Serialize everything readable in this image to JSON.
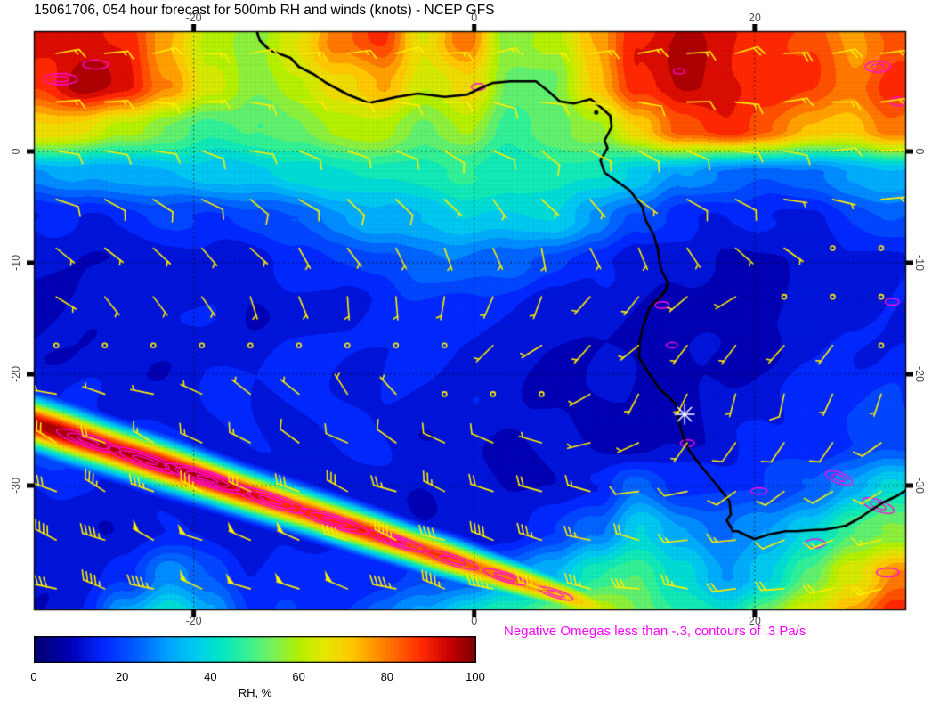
{
  "title": "15061706, 054 hour forecast for 500mb RH and winds (knots) - NCEP GFS",
  "annotation": "Negative Omegas less than -.3, contours of .3 Pa/s",
  "colorbar": {
    "label": "RH, %",
    "ticks": [
      0,
      20,
      40,
      60,
      80,
      100
    ],
    "min": 0,
    "max": 100
  },
  "axes": {
    "lon_range": [
      -31.4,
      30.8
    ],
    "lat_range": [
      10.8,
      -41.2
    ],
    "lon_ticks": [
      {
        "value": -20,
        "label": "-20"
      },
      {
        "value": 0,
        "label": "0"
      },
      {
        "value": 20,
        "label": "20"
      }
    ],
    "lat_ticks": [
      {
        "value": 0,
        "label": "0"
      },
      {
        "value": -10,
        "label": "-10"
      },
      {
        "value": -20,
        "label": "-20"
      },
      {
        "value": -30,
        "label": "-30"
      }
    ]
  },
  "colors": {
    "barb": "#ffee00",
    "omega_contour": "#ff0be0",
    "annotation": "#ff00ff",
    "coastline": "#000000",
    "marker": "#ffffff",
    "axis_label": "#4d4d4d"
  },
  "marker": {
    "symbol": "asterisk",
    "lon": 15.0,
    "lat": -23.6
  },
  "chart_data": {
    "type": "heatmap",
    "field": "500mb relative humidity (%) with wind barbs (knots) and negative omega contours",
    "model": "NCEP GFS",
    "init_time": "15061706",
    "forecast_hour": 54,
    "level": "500mb",
    "colormap_stops": [
      [
        0,
        "#00006e"
      ],
      [
        8,
        "#0000b4"
      ],
      [
        16,
        "#0028ff"
      ],
      [
        24,
        "#0064ff"
      ],
      [
        30,
        "#00a0ff"
      ],
      [
        36,
        "#00c8f0"
      ],
      [
        42,
        "#00e6c8"
      ],
      [
        48,
        "#32f096"
      ],
      [
        54,
        "#78f05a"
      ],
      [
        60,
        "#b4f000"
      ],
      [
        66,
        "#e6e600"
      ],
      [
        72,
        "#ffc800"
      ],
      [
        80,
        "#ff7800"
      ],
      [
        88,
        "#ff2800"
      ],
      [
        94,
        "#c80000"
      ],
      [
        100,
        "#780000"
      ]
    ],
    "rh": {
      "units": "%",
      "lon_start": -31,
      "lon_step": 3.05,
      "lat_start": 10,
      "lat_step": -4,
      "values": [
        [
          90,
          92,
          88,
          75,
          60,
          58,
          65,
          80,
          88,
          65,
          80,
          55,
          60,
          75,
          90,
          95,
          90,
          88,
          85,
          75,
          85
        ],
        [
          88,
          95,
          92,
          80,
          62,
          55,
          60,
          70,
          75,
          62,
          68,
          52,
          55,
          70,
          88,
          96,
          92,
          90,
          85,
          80,
          88
        ],
        [
          70,
          68,
          60,
          52,
          48,
          50,
          55,
          58,
          60,
          55,
          58,
          48,
          50,
          58,
          70,
          85,
          88,
          82,
          75,
          70,
          80
        ],
        [
          28,
          30,
          32,
          33,
          35,
          38,
          40,
          42,
          42,
          44,
          45,
          45,
          44,
          42,
          38,
          30,
          25,
          22,
          25,
          30,
          35
        ],
        [
          14,
          15,
          16,
          17,
          18,
          20,
          24,
          28,
          32,
          36,
          38,
          38,
          36,
          30,
          22,
          16,
          13,
          13,
          15,
          18,
          22
        ],
        [
          9,
          10,
          10,
          11,
          12,
          13,
          15,
          18,
          20,
          23,
          25,
          24,
          20,
          15,
          12,
          10,
          9,
          9,
          11,
          13,
          15
        ],
        [
          8,
          9,
          12,
          14,
          12,
          10,
          11,
          13,
          15,
          16,
          16,
          15,
          13,
          11,
          10,
          8,
          8,
          8,
          10,
          12,
          14
        ],
        [
          9,
          10,
          11,
          12,
          13,
          14,
          14,
          15,
          15,
          14,
          13,
          12,
          11,
          10,
          9,
          8,
          9,
          10,
          12,
          14,
          16
        ],
        [
          14,
          13,
          12,
          12,
          13,
          14,
          15,
          15,
          14,
          13,
          12,
          11,
          10,
          9,
          9,
          10,
          11,
          13,
          15,
          17,
          18
        ],
        [
          20,
          18,
          15,
          13,
          13,
          14,
          14,
          14,
          13,
          12,
          11,
          10,
          10,
          9,
          9,
          10,
          12,
          14,
          16,
          18,
          20
        ],
        [
          15,
          14,
          13,
          12,
          12,
          13,
          13,
          13,
          12,
          11,
          11,
          10,
          10,
          14,
          25,
          18,
          16,
          18,
          22,
          30,
          40
        ],
        [
          12,
          12,
          12,
          12,
          13,
          13,
          14,
          14,
          13,
          12,
          12,
          13,
          16,
          25,
          40,
          30,
          25,
          28,
          40,
          50,
          55
        ],
        [
          10,
          11,
          16,
          30,
          22,
          15,
          14,
          15,
          16,
          18,
          22,
          28,
          35,
          45,
          50,
          38,
          30,
          38,
          50,
          65,
          80
        ],
        [
          10,
          12,
          35,
          45,
          30,
          18,
          18,
          20,
          25,
          32,
          42,
          50,
          58,
          62,
          55,
          48,
          45,
          55,
          65,
          78,
          90
        ]
      ]
    },
    "front_band": {
      "description": "NW-SE oriented moist frontal band over the South Atlantic",
      "lat_start": -24.4,
      "lon_start": -31.4,
      "slope_per_deg": -0.41,
      "sigma_start": 1.6,
      "sigma_end": 0.9,
      "peak_profile": [
        [
          -31.4,
          98
        ],
        [
          -22,
          96
        ],
        [
          -12,
          90
        ],
        [
          -4,
          86
        ],
        [
          2,
          82
        ],
        [
          7,
          74
        ],
        [
          10,
          55
        ],
        [
          12.5,
          0
        ]
      ]
    },
    "wind": {
      "units": "knots",
      "lons": [
        -31,
        -25,
        -19,
        -13,
        -7,
        -1,
        5,
        11,
        17,
        23,
        30
      ],
      "lats": [
        10,
        2,
        -6,
        -14,
        -22,
        -28,
        -34,
        -42
      ],
      "uv": [
        [
          [
            -15,
            -3
          ],
          [
            -15,
            -3
          ],
          [
            -16,
            -2
          ],
          [
            -18,
            -2
          ],
          [
            -15,
            -4
          ],
          [
            -14,
            -3
          ],
          [
            -15,
            -2
          ],
          [
            -16,
            -3
          ],
          [
            -18,
            -4
          ],
          [
            -20,
            -3
          ],
          [
            -18,
            -2
          ]
        ],
        [
          [
            -12,
            0
          ],
          [
            -12,
            1
          ],
          [
            -12,
            2
          ],
          [
            -10,
            2
          ],
          [
            -10,
            3
          ],
          [
            -8,
            3
          ],
          [
            -8,
            4
          ],
          [
            -8,
            4
          ],
          [
            -10,
            2
          ],
          [
            -12,
            0
          ],
          [
            -12,
            -2
          ]
        ],
        [
          [
            -7,
            4
          ],
          [
            -6,
            5
          ],
          [
            -6,
            5
          ],
          [
            -5,
            5
          ],
          [
            -5,
            6
          ],
          [
            -4,
            6
          ],
          [
            -4,
            6
          ],
          [
            -5,
            5
          ],
          [
            -6,
            4
          ],
          [
            -6,
            2
          ],
          [
            -5,
            0
          ]
        ],
        [
          [
            -4,
            3
          ],
          [
            -3,
            4
          ],
          [
            -2,
            4
          ],
          [
            -1,
            5
          ],
          [
            0,
            5
          ],
          [
            2,
            5
          ],
          [
            3,
            4
          ],
          [
            4,
            3
          ],
          [
            4,
            2
          ],
          [
            3,
            0
          ],
          [
            2,
            -2
          ]
        ],
        [
          [
            6,
            -2
          ],
          [
            5,
            -1
          ],
          [
            4,
            -2
          ],
          [
            3,
            -3
          ],
          [
            2,
            -3
          ],
          [
            2,
            -2
          ],
          [
            3,
            0
          ],
          [
            3,
            4
          ],
          [
            2,
            7
          ],
          [
            2,
            8
          ],
          [
            3,
            6
          ]
        ],
        [
          [
            20,
            -10
          ],
          [
            22,
            -11
          ],
          [
            18,
            -9
          ],
          [
            14,
            -8
          ],
          [
            12,
            -6
          ],
          [
            10,
            -5
          ],
          [
            8,
            -2
          ],
          [
            6,
            2
          ],
          [
            5,
            6
          ],
          [
            6,
            7
          ],
          [
            8,
            5
          ]
        ],
        [
          [
            35,
            -16
          ],
          [
            42,
            -20
          ],
          [
            48,
            -20
          ],
          [
            45,
            -18
          ],
          [
            42,
            -16
          ],
          [
            38,
            -14
          ],
          [
            30,
            -10
          ],
          [
            18,
            -4
          ],
          [
            12,
            2
          ],
          [
            10,
            5
          ],
          [
            12,
            4
          ]
        ],
        [
          [
            38,
            -6
          ],
          [
            42,
            -10
          ],
          [
            46,
            -14
          ],
          [
            48,
            -15
          ],
          [
            48,
            -14
          ],
          [
            46,
            -12
          ],
          [
            42,
            -10
          ],
          [
            35,
            -6
          ],
          [
            28,
            -2
          ],
          [
            22,
            2
          ],
          [
            20,
            4
          ]
        ]
      ],
      "stations": {
        "lon0": -29.8,
        "dlon": 3.46,
        "ncols": 18,
        "lat0": 8.8,
        "dlat": 4.37,
        "nrows": 12
      }
    },
    "omega_contours": {
      "threshold": "-.3",
      "interval": ".3 Pa/s",
      "clusters": [
        [
          -27.5,
          -26.0,
          2.4,
          0.55,
          18,
          3
        ],
        [
          -23.5,
          -27.7,
          2.8,
          0.6,
          18,
          3
        ],
        [
          -19,
          -29.4,
          3.2,
          0.65,
          18,
          4
        ],
        [
          -14.5,
          -31.3,
          2.6,
          0.6,
          18,
          3
        ],
        [
          -10,
          -33.2,
          2.6,
          0.55,
          18,
          3
        ],
        [
          -5.5,
          -35.0,
          2.2,
          0.5,
          18,
          3
        ],
        [
          -1.5,
          -36.7,
          1.9,
          0.45,
          18,
          2
        ],
        [
          2.2,
          -38.2,
          1.6,
          0.4,
          18,
          2
        ],
        [
          5.8,
          -39.7,
          1.3,
          0.35,
          18,
          2
        ],
        [
          -29.5,
          6.5,
          1.2,
          0.5,
          0,
          2
        ],
        [
          -27,
          7.8,
          0.9,
          0.4,
          0,
          1
        ],
        [
          0.3,
          5.8,
          0.5,
          0.3,
          0,
          1
        ],
        [
          14.6,
          7.2,
          0.4,
          0.25,
          0,
          1
        ],
        [
          28.8,
          7.6,
          0.9,
          0.5,
          0,
          2
        ],
        [
          30.2,
          4.5,
          0.5,
          0.4,
          0,
          1
        ],
        [
          13.4,
          -13.8,
          0.5,
          0.3,
          0,
          1
        ],
        [
          14.1,
          -17.4,
          0.4,
          0.25,
          0,
          1
        ],
        [
          29.8,
          -13.5,
          0.5,
          0.3,
          0,
          1
        ],
        [
          15.2,
          -26.2,
          0.5,
          0.3,
          0,
          1
        ],
        [
          26,
          -29.3,
          1.0,
          0.5,
          20,
          2
        ],
        [
          28.8,
          -31.8,
          1.2,
          0.5,
          20,
          2
        ],
        [
          20.3,
          -30.5,
          0.6,
          0.3,
          0,
          1
        ],
        [
          24.3,
          -35.2,
          0.7,
          0.4,
          0,
          1
        ],
        [
          29.5,
          -37.8,
          0.8,
          0.4,
          0,
          1
        ]
      ]
    },
    "coastline": [
      [
        -15.5,
        10.8
      ],
      [
        -15.3,
        10.0
      ],
      [
        -14.6,
        9.1
      ],
      [
        -13.1,
        8.4
      ],
      [
        -12.5,
        7.6
      ],
      [
        -11.4,
        6.9
      ],
      [
        -10.6,
        6.2
      ],
      [
        -9.0,
        5.1
      ],
      [
        -7.5,
        4.35
      ],
      [
        -5.5,
        4.9
      ],
      [
        -4.0,
        5.2
      ],
      [
        -2.1,
        4.9
      ],
      [
        -0.5,
        5.1
      ],
      [
        0.3,
        5.6
      ],
      [
        1.3,
        6.15
      ],
      [
        2.6,
        6.3
      ],
      [
        4.4,
        6.3
      ],
      [
        5.3,
        5.4
      ],
      [
        6.1,
        4.5
      ],
      [
        7.1,
        4.3
      ],
      [
        8.3,
        4.7
      ],
      [
        9.0,
        4.0
      ],
      [
        9.7,
        3.2
      ],
      [
        9.8,
        2.2
      ],
      [
        9.3,
        1.0
      ],
      [
        9.5,
        0.3
      ],
      [
        9.0,
        -0.8
      ],
      [
        9.3,
        -1.9
      ],
      [
        11.1,
        -3.5
      ],
      [
        12.0,
        -5.0
      ],
      [
        12.2,
        -6.1
      ],
      [
        12.8,
        -7.5
      ],
      [
        13.1,
        -8.8
      ],
      [
        13.3,
        -10.5
      ],
      [
        13.8,
        -11.8
      ],
      [
        13.6,
        -12.6
      ],
      [
        12.5,
        -14.0
      ],
      [
        12.1,
        -15.5
      ],
      [
        11.8,
        -17.0
      ],
      [
        11.75,
        -18.5
      ],
      [
        12.4,
        -19.8
      ],
      [
        13.2,
        -21.3
      ],
      [
        14.4,
        -22.7
      ],
      [
        14.6,
        -24.2
      ],
      [
        14.9,
        -25.6
      ],
      [
        15.3,
        -26.8
      ],
      [
        16.2,
        -28.3
      ],
      [
        17.2,
        -29.8
      ],
      [
        18.2,
        -31.4
      ],
      [
        18.3,
        -32.6
      ],
      [
        18.0,
        -33.1
      ],
      [
        18.45,
        -34.1
      ],
      [
        18.8,
        -34.1
      ],
      [
        19.6,
        -34.6
      ],
      [
        20.0,
        -34.8
      ],
      [
        21.0,
        -34.4
      ],
      [
        22.2,
        -34.1
      ],
      [
        23.0,
        -34.1
      ],
      [
        24.0,
        -34.0
      ],
      [
        25.0,
        -33.95
      ],
      [
        25.7,
        -33.8
      ],
      [
        26.5,
        -33.6
      ],
      [
        27.5,
        -32.9
      ],
      [
        28.3,
        -32.2
      ],
      [
        29.2,
        -31.5
      ],
      [
        30.2,
        -30.9
      ],
      [
        30.9,
        -30.3
      ]
    ],
    "islands": [
      [
        8.7,
        3.5
      ]
    ]
  }
}
